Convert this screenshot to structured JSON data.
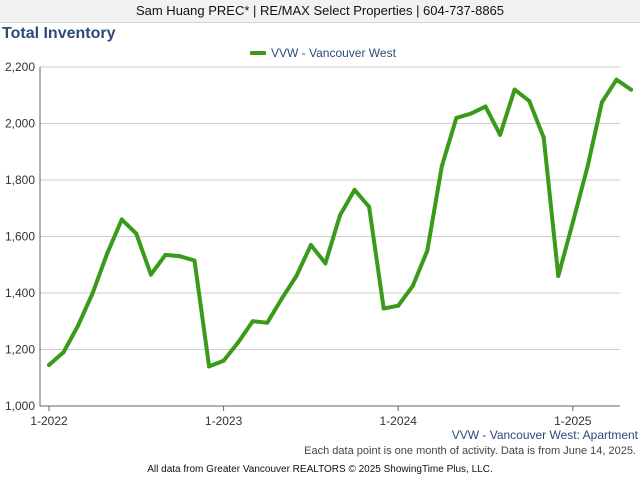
{
  "header": {
    "agent_line": "Sam Huang PREC* | RE/MAX Select Properties | 604-737-8865"
  },
  "footer": {
    "series_label": "VVW - Vancouver West: Apartment",
    "note": "Each data point is one month of activity. Data is from June 14, 2025.",
    "copyright": "All data from Greater Vancouver REALTORS © 2025 ShowingTime Plus, LLC."
  },
  "colors": {
    "series": "#3a9a1a",
    "title": "#2c4a7a",
    "grid": "#cccccc"
  },
  "chart_data": {
    "type": "line",
    "title": "Total Inventory",
    "xlabel": "",
    "ylabel": "",
    "ylim": [
      1000,
      2200
    ],
    "yticks": [
      "1,000",
      "1,200",
      "1,400",
      "1,600",
      "1,800",
      "2,000",
      "2,200"
    ],
    "xticks": [
      "1-2022",
      "1-2023",
      "1-2024",
      "1-2025"
    ],
    "grid": true,
    "legend_position": "top-center",
    "series": [
      {
        "name": "VVW - Vancouver West",
        "x": [
          "2022-01",
          "2022-02",
          "2022-03",
          "2022-04",
          "2022-05",
          "2022-06",
          "2022-07",
          "2022-08",
          "2022-09",
          "2022-10",
          "2022-11",
          "2022-12",
          "2023-01",
          "2023-02",
          "2023-03",
          "2023-04",
          "2023-05",
          "2023-06",
          "2023-07",
          "2023-08",
          "2023-09",
          "2023-10",
          "2023-11",
          "2023-12",
          "2024-01",
          "2024-02",
          "2024-03",
          "2024-04",
          "2024-05",
          "2024-06",
          "2024-07",
          "2024-08",
          "2024-09",
          "2024-10",
          "2024-11",
          "2024-12",
          "2025-01",
          "2025-02",
          "2025-03",
          "2025-04",
          "2025-05"
        ],
        "values": [
          1145,
          1190,
          1285,
          1400,
          1540,
          1660,
          1610,
          1465,
          1535,
          1530,
          1515,
          1140,
          1160,
          1225,
          1300,
          1295,
          1380,
          1460,
          1570,
          1505,
          1675,
          1765,
          1705,
          1345,
          1355,
          1425,
          1550,
          1850,
          2020,
          2035,
          2060,
          1960,
          2120,
          2080,
          1950,
          1460,
          1650,
          1845,
          2075,
          2155,
          2120
        ]
      }
    ]
  }
}
